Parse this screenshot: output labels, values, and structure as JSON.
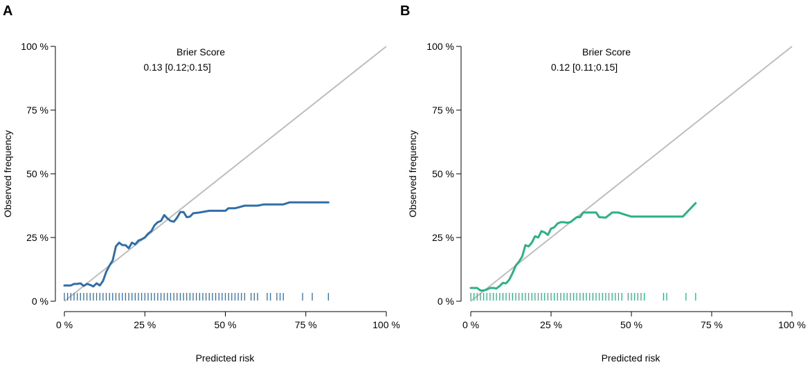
{
  "chart_data": [
    {
      "type": "line",
      "panel_label": "A",
      "xlabel": "Predicted risk",
      "ylabel": "Observed frequency",
      "xlim": [
        0,
        100
      ],
      "ylim": [
        0,
        100
      ],
      "x_ticks": [
        0,
        25,
        50,
        75,
        100
      ],
      "x_tick_labels": [
        "0 %",
        "25 %",
        "50 %",
        "75 %",
        "100 %"
      ],
      "y_ticks": [
        0,
        25,
        50,
        75,
        100
      ],
      "y_tick_labels": [
        "0 %",
        "25 %",
        "50 %",
        "75 %",
        "100 %"
      ],
      "annotation_title": "Brier Score",
      "annotation_value": "0.13 [0.12;0.15]",
      "reference_line": {
        "x": [
          0,
          100
        ],
        "y": [
          0,
          100
        ],
        "color": "#bdbdbd"
      },
      "series": [
        {
          "name": "calibration",
          "color": "#2f6ea8",
          "x": [
            0,
            1,
            2,
            3,
            4,
            5,
            6,
            7,
            8,
            9,
            10,
            11,
            12,
            13,
            14,
            15,
            16,
            17,
            18,
            19,
            20,
            21,
            22,
            23,
            24,
            25,
            26,
            27,
            28,
            29,
            30,
            31,
            32,
            33,
            34,
            35,
            36,
            37,
            38,
            39,
            40,
            42,
            45,
            48,
            50,
            51,
            53,
            54,
            56,
            58,
            60,
            62,
            64,
            66,
            67,
            68,
            70,
            75,
            78,
            80,
            82
          ],
          "y": [
            6.2,
            6.2,
            6.2,
            6.8,
            6.8,
            7.0,
            6.0,
            6.8,
            6.4,
            5.8,
            7.0,
            6.2,
            8.0,
            11.5,
            14.0,
            16.0,
            21.5,
            23.0,
            22.0,
            22.0,
            20.8,
            23.0,
            22.3,
            23.8,
            24.3,
            25.0,
            26.5,
            27.5,
            29.8,
            31.0,
            31.5,
            33.8,
            32.5,
            31.5,
            31.2,
            32.8,
            35.0,
            35.0,
            33.0,
            33.2,
            34.5,
            34.8,
            35.5,
            35.5,
            35.5,
            36.5,
            36.5,
            36.8,
            37.5,
            37.5,
            37.5,
            38.0,
            38.0,
            38.0,
            38.0,
            38.0,
            38.8,
            38.8,
            38.8,
            38.8,
            38.8
          ]
        }
      ],
      "rug": [
        0,
        1,
        2,
        3,
        4,
        5,
        6,
        7,
        8,
        9,
        10,
        11,
        12,
        13,
        14,
        15,
        16,
        17,
        18,
        19,
        20,
        21,
        22,
        23,
        24,
        25,
        26,
        27,
        28,
        29,
        30,
        31,
        32,
        33,
        34,
        35,
        36,
        37,
        38,
        39,
        40,
        41,
        42,
        43,
        44,
        45,
        46,
        47,
        48,
        49,
        50,
        51,
        52,
        53,
        54,
        55,
        56,
        58,
        59,
        60,
        63,
        64,
        66,
        67,
        68,
        74,
        77,
        82
      ]
    },
    {
      "type": "line",
      "panel_label": "B",
      "xlabel": "Predicted risk",
      "ylabel": "Observed frequency",
      "xlim": [
        0,
        100
      ],
      "ylim": [
        0,
        100
      ],
      "x_ticks": [
        0,
        25,
        50,
        75,
        100
      ],
      "x_tick_labels": [
        "0 %",
        "25 %",
        "50 %",
        "75 %",
        "100 %"
      ],
      "y_ticks": [
        0,
        25,
        50,
        75,
        100
      ],
      "y_tick_labels": [
        "0 %",
        "25 %",
        "50 %",
        "75 %",
        "100 %"
      ],
      "annotation_title": "Brier Score",
      "annotation_value": "0.12 [0.11;0.15]",
      "reference_line": {
        "x": [
          0,
          100
        ],
        "y": [
          0,
          100
        ],
        "color": "#bdbdbd"
      },
      "series": [
        {
          "name": "calibration",
          "color": "#2bb184",
          "x": [
            0,
            1,
            2,
            3,
            4,
            5,
            6,
            7,
            8,
            9,
            10,
            11,
            12,
            13,
            14,
            15,
            16,
            17,
            18,
            19,
            20,
            21,
            22,
            23,
            24,
            25,
            26,
            27,
            28,
            29,
            30,
            31,
            32,
            33,
            34,
            35,
            36,
            37,
            38,
            39,
            40,
            42,
            44,
            46,
            48,
            50,
            52,
            55,
            58,
            60,
            62,
            64,
            66,
            70
          ],
          "y": [
            5.2,
            5.2,
            5.2,
            4.2,
            4.2,
            4.6,
            5.2,
            5.2,
            5.0,
            6.0,
            7.2,
            7.0,
            8.5,
            11.0,
            14.0,
            15.5,
            17.5,
            22.0,
            21.5,
            23.0,
            25.5,
            25.0,
            27.5,
            27.0,
            26.0,
            28.5,
            29.0,
            30.5,
            31.0,
            31.0,
            30.8,
            31.0,
            32.0,
            33.0,
            33.0,
            34.8,
            34.8,
            34.8,
            34.8,
            34.8,
            33.0,
            32.8,
            34.8,
            34.8,
            34.0,
            33.2,
            33.2,
            33.2,
            33.2,
            33.2,
            33.2,
            33.2,
            33.2,
            38.5
          ]
        }
      ],
      "rug": [
        0,
        1,
        2,
        3,
        4,
        5,
        6,
        7,
        8,
        9,
        10,
        11,
        12,
        13,
        14,
        15,
        16,
        17,
        18,
        19,
        20,
        21,
        22,
        23,
        24,
        25,
        26,
        27,
        28,
        29,
        30,
        31,
        32,
        33,
        34,
        35,
        36,
        37,
        38,
        39,
        40,
        41,
        42,
        43,
        44,
        45,
        46,
        47,
        49,
        50,
        51,
        52,
        53,
        54,
        60,
        61,
        67,
        70
      ]
    }
  ]
}
